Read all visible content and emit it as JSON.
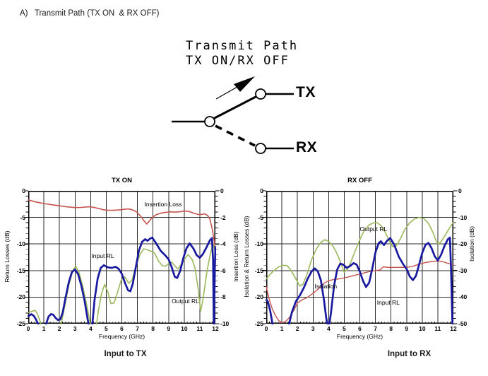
{
  "page": {
    "heading": "A)   Transmit Path (TX ON  & RX OFF)"
  },
  "diagram": {
    "title_line1": "Transmit Path",
    "title_line2": "TX ON/RX OFF",
    "tx_label": "TX",
    "rx_label": "RX"
  },
  "colors": {
    "curve_red": "#c5534e",
    "curve_blue": "#1a1aa0",
    "curve_green": "#9cb85c",
    "grid": "#2b2b2b",
    "axis": "#000000"
  },
  "chart_data": [
    {
      "type": "line",
      "title": "TX ON",
      "caption": "Input to TX",
      "xlabel": "Frequency (GHz)",
      "ylabel_left": "Return Losses (dB)",
      "ylabel_right": "Insertion Loss (dB)",
      "xlim": [
        0,
        12
      ],
      "xticks": [
        0,
        1,
        2,
        3,
        4,
        5,
        6,
        7,
        8,
        9,
        10,
        11,
        12
      ],
      "ylim_left": [
        0,
        -25
      ],
      "yticks_left": [
        0,
        -5,
        -10,
        -15,
        -20,
        -25
      ],
      "ylim_right": [
        0,
        -10
      ],
      "yticks_right": [
        0,
        -2,
        -4,
        -6,
        -8,
        -10
      ],
      "grid": true,
      "series": [
        {
          "name": "Insertion Loss",
          "axis": "right",
          "color": "#c5534e",
          "width": 1.6,
          "x": [
            0,
            0.5,
            1,
            1.5,
            2,
            2.5,
            3,
            3.4,
            3.8,
            4,
            4.4,
            4.8,
            5.1,
            5.4,
            5.8,
            6.1,
            6.4,
            6.6,
            6.9,
            7.2,
            7.45,
            7.6,
            7.75,
            7.95,
            8.2,
            8.5,
            8.8,
            9.1,
            9.4,
            9.7,
            10,
            10.3,
            10.6,
            10.9,
            11.1,
            11.3,
            11.5,
            11.65,
            11.8,
            11.9,
            12
          ],
          "y": [
            -0.68,
            -0.84,
            -0.96,
            -1.05,
            -1.13,
            -1.21,
            -1.26,
            -1.25,
            -1.21,
            -1.2,
            -1.3,
            -1.42,
            -1.46,
            -1.47,
            -1.44,
            -1.4,
            -1.36,
            -1.4,
            -1.55,
            -1.9,
            -2.3,
            -2.5,
            -2.3,
            -2.0,
            -1.8,
            -1.68,
            -1.62,
            -1.58,
            -1.6,
            -1.58,
            -1.52,
            -1.55,
            -1.68,
            -1.78,
            -1.78,
            -1.73,
            -1.85,
            -2.15,
            -2.9,
            -3.6,
            -4.3
          ]
        },
        {
          "name": "Output RL",
          "axis": "left",
          "color": "#9cb85c",
          "width": 1.6,
          "x": [
            0,
            0.2,
            0.45,
            0.6,
            0.75,
            0.9,
            1.1,
            1.4,
            1.7,
            1.95,
            2.15,
            2.35,
            2.6,
            2.85,
            3.05,
            3.25,
            3.5,
            3.75,
            3.95,
            4.1,
            4.3,
            4.5,
            4.7,
            4.9,
            5.1,
            5.3,
            5.5,
            5.7,
            5.95,
            6.2,
            6.45,
            6.65,
            6.9,
            7.15,
            7.4,
            7.65,
            7.9,
            8.1,
            8.35,
            8.6,
            8.8,
            9.0,
            9.2,
            9.45,
            9.6,
            9.8,
            10.0,
            10.25,
            10.5,
            10.7,
            10.9,
            11.05,
            11.2,
            11.45,
            11.65,
            11.85,
            12.0
          ],
          "y": [
            -22.9,
            -22.7,
            -22.5,
            -23.2,
            -24.5,
            -26,
            -27.5,
            -28,
            -27.8,
            -26.5,
            -24.5,
            -21.5,
            -17.8,
            -15.0,
            -14.2,
            -15.3,
            -18,
            -21.5,
            -24.5,
            -26.5,
            -26.8,
            -22.5,
            -19.3,
            -17.6,
            -19,
            -21.2,
            -21.1,
            -19.3,
            -16.9,
            -16.2,
            -17.4,
            -16.8,
            -14.3,
            -12.1,
            -10.9,
            -11.1,
            -11.4,
            -11.7,
            -13.2,
            -14.1,
            -14.2,
            -13.7,
            -13.4,
            -14.3,
            -14.7,
            -13.9,
            -12.9,
            -12.0,
            -12.9,
            -14.6,
            -18.5,
            -22.7,
            -20.5,
            -15.3,
            -12.2,
            -9.8,
            -11.8
          ]
        },
        {
          "name": "Input RL",
          "axis": "left",
          "color": "#1a1aa0",
          "width": 2.7,
          "x": [
            0,
            0.2,
            0.35,
            0.5,
            0.65,
            0.75,
            0.85,
            1.0,
            1.15,
            1.3,
            1.45,
            1.6,
            1.75,
            1.9,
            2.05,
            2.2,
            2.4,
            2.6,
            2.8,
            3.0,
            3.2,
            3.4,
            3.6,
            3.8,
            3.95,
            4.1,
            4.25,
            4.45,
            4.65,
            4.85,
            5.1,
            5.35,
            5.6,
            5.8,
            6.0,
            6.2,
            6.4,
            6.55,
            6.7,
            6.9,
            7.1,
            7.3,
            7.5,
            7.65,
            7.8,
            7.95,
            8.2,
            8.5,
            8.8,
            9.0,
            9.2,
            9.4,
            9.55,
            9.75,
            9.95,
            10.15,
            10.35,
            10.6,
            10.8,
            11.0,
            11.2,
            11.45,
            11.65,
            11.78,
            11.85,
            11.9,
            11.97,
            12.0
          ],
          "y": [
            -23.6,
            -23.2,
            -23.5,
            -24.2,
            -25.2,
            -26,
            -26.3,
            -26,
            -25,
            -23.7,
            -23.2,
            -23.3,
            -23.9,
            -24.3,
            -24.2,
            -23,
            -20,
            -17.2,
            -15.3,
            -14.8,
            -15.7,
            -17.8,
            -20.5,
            -24,
            -26.3,
            -25.5,
            -20.5,
            -16.5,
            -14.5,
            -14.0,
            -14.4,
            -14.5,
            -14.3,
            -14.7,
            -15.6,
            -17.3,
            -18.7,
            -18.9,
            -17.5,
            -14.3,
            -11.2,
            -9.6,
            -9.1,
            -9.4,
            -9.0,
            -8.8,
            -9.9,
            -11.3,
            -12.2,
            -12.9,
            -14.4,
            -16.2,
            -16.4,
            -15.0,
            -12.6,
            -10.8,
            -9.9,
            -10.9,
            -12.1,
            -12.6,
            -11.9,
            -10.5,
            -9.3,
            -8.9,
            -13,
            -26.5,
            -14,
            -10.6
          ]
        }
      ],
      "annotations": [
        {
          "text": "Insertion Loss",
          "x": 7.45,
          "y": -2.5
        },
        {
          "text": "Input RL",
          "x": 4.05,
          "y": -12.3
        },
        {
          "text": "Output RL",
          "x": 9.2,
          "y": -20.8
        }
      ]
    },
    {
      "type": "line",
      "title": "RX OFF",
      "caption": "Input to RX",
      "xlabel": "Frequency (GHz)",
      "ylabel_left": "Isolation & Return Losses (dB)",
      "ylabel_right": "Isolation (dB)",
      "xlim": [
        0,
        12
      ],
      "xticks": [
        0,
        1,
        2,
        3,
        4,
        5,
        6,
        7,
        8,
        9,
        10,
        11,
        12
      ],
      "ylim_left": [
        0,
        -25
      ],
      "yticks_left": [
        0,
        -5,
        -10,
        -15,
        -20,
        -25
      ],
      "ylim_right": [
        0,
        -50
      ],
      "yticks_right": [
        0,
        -10,
        -20,
        -30,
        -40,
        -50
      ],
      "grid": true,
      "series": [
        {
          "name": "Output RL",
          "axis": "left",
          "color": "#9cb85c",
          "width": 1.6,
          "x": [
            0,
            0.25,
            0.5,
            0.8,
            1.1,
            1.35,
            1.6,
            1.9,
            2.15,
            2.35,
            2.6,
            2.9,
            3.2,
            3.5,
            3.75,
            4.0,
            4.3,
            4.6,
            4.8,
            5.0,
            5.2,
            5.45,
            5.7,
            6.0,
            6.3,
            6.6,
            6.9,
            7.1,
            7.35,
            7.6,
            7.85,
            8.1,
            8.35,
            8.6,
            8.9,
            9.2,
            9.5,
            9.8,
            10.1,
            10.4,
            10.7,
            10.9,
            11.05,
            11.25,
            11.5,
            11.75,
            12.0
          ],
          "y": [
            -16.6,
            -15.7,
            -15.0,
            -14.3,
            -14.0,
            -14.1,
            -15.0,
            -16.6,
            -17.9,
            -17.6,
            -15.8,
            -13.0,
            -11.0,
            -9.7,
            -9.2,
            -9.5,
            -10.5,
            -12.2,
            -13.8,
            -15.3,
            -14.8,
            -13.2,
            -11.3,
            -9.2,
            -7.4,
            -6.4,
            -6.0,
            -6.0,
            -6.5,
            -7.6,
            -9.2,
            -10.5,
            -10.3,
            -9.0,
            -7.2,
            -6.0,
            -5.3,
            -5.0,
            -5.2,
            -6.1,
            -7.9,
            -9.5,
            -10.0,
            -9.4,
            -8.2,
            -7.0,
            -5.9
          ]
        },
        {
          "name": "Isolation",
          "axis": "right",
          "color": "#c5534e",
          "width": 1.4,
          "x": [
            0,
            0.2,
            0.4,
            0.6,
            0.8,
            1.0,
            1.2,
            1.5,
            1.8,
            2.0,
            2.3,
            2.6,
            3.0,
            3.4,
            3.7,
            4.0,
            4.3,
            4.6,
            5.0,
            5.4,
            5.8,
            6.2,
            6.6,
            7.0,
            7.3,
            7.5,
            7.8,
            8.2,
            8.6,
            9.0,
            9.4,
            9.8,
            10.2,
            10.6,
            11.0,
            11.3,
            11.6,
            12.0
          ],
          "y": [
            -36,
            -41,
            -44.6,
            -47,
            -48.8,
            -49.6,
            -49.4,
            -47.6,
            -44.6,
            -42.2,
            -41,
            -40.2,
            -38.6,
            -36.6,
            -34.8,
            -33.8,
            -33.4,
            -33.2,
            -32.8,
            -32.2,
            -31.6,
            -31,
            -30.4,
            -30,
            -29.8,
            -28.6,
            -28.8,
            -28.8,
            -28.8,
            -28.8,
            -28.4,
            -27.6,
            -27,
            -26.6,
            -26.4,
            -26.6,
            -27.2,
            -27.8
          ]
        },
        {
          "name": "Input RL",
          "axis": "left",
          "color": "#1a1aa0",
          "width": 2.7,
          "x": [
            0,
            0.1,
            0.25,
            0.4,
            0.55,
            0.75,
            1.0,
            1.25,
            1.45,
            1.65,
            1.9,
            2.15,
            2.4,
            2.65,
            2.9,
            3.1,
            3.3,
            3.5,
            3.7,
            3.85,
            4.0,
            4.15,
            4.35,
            4.55,
            4.75,
            4.95,
            5.15,
            5.35,
            5.6,
            5.8,
            6.0,
            6.2,
            6.4,
            6.6,
            6.8,
            7.0,
            7.2,
            7.35,
            7.55,
            7.75,
            7.95,
            8.2,
            8.5,
            8.8,
            9.0,
            9.2,
            9.4,
            9.6,
            9.8,
            10.0,
            10.2,
            10.4,
            10.6,
            10.8,
            11.0,
            11.2,
            11.45,
            11.65,
            11.78,
            11.85,
            11.95
          ],
          "y": [
            -20.5,
            -20.8,
            -22.5,
            -25,
            -26.8,
            -27.5,
            -27.6,
            -26.8,
            -25.2,
            -22.8,
            -20.8,
            -19.7,
            -18.3,
            -16.6,
            -15.2,
            -14.6,
            -15.1,
            -16.8,
            -20.5,
            -24,
            -26,
            -23,
            -17.8,
            -14.8,
            -13.7,
            -13.9,
            -14.5,
            -14.2,
            -13.6,
            -13.9,
            -15.2,
            -16.9,
            -18.1,
            -17.3,
            -14.6,
            -11.6,
            -9.9,
            -9.5,
            -10.2,
            -9.4,
            -8.9,
            -10.1,
            -12.4,
            -13.9,
            -14.7,
            -16.1,
            -16.8,
            -16.0,
            -13.9,
            -11.7,
            -10.2,
            -9.8,
            -10.8,
            -12.3,
            -13.1,
            -12.1,
            -10.2,
            -9.1,
            -8.8,
            -15,
            -26.5
          ]
        }
      ],
      "annotations": [
        {
          "text": "Output RL",
          "x": 6.0,
          "y": -7.2
        },
        {
          "text": "Isolation",
          "x": 3.1,
          "y": -17.9
        },
        {
          "text": "Input RL",
          "x": 7.1,
          "y": -21.0
        }
      ]
    }
  ]
}
